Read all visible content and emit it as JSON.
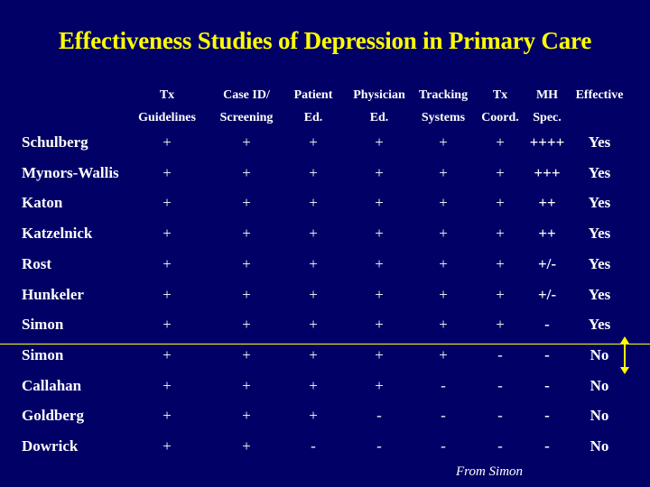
{
  "title": "Effectiveness Studies of Depression in Primary Care",
  "columns": [
    {
      "line1": "Tx",
      "line2": "Guidelines"
    },
    {
      "line1": "Case ID/",
      "line2": "Screening"
    },
    {
      "line1": "Patient",
      "line2": "Ed."
    },
    {
      "line1": "Physician",
      "line2": "Ed."
    },
    {
      "line1": "Tracking",
      "line2": "Systems"
    },
    {
      "line1": "Tx",
      "line2": "Coord."
    },
    {
      "line1": "MH",
      "line2": "Spec."
    },
    {
      "line1": "Effective",
      "line2": ""
    }
  ],
  "rows": [
    {
      "name": "Schulberg",
      "values": [
        "+",
        "+",
        "+",
        "+",
        "+",
        "+",
        "++++",
        "Yes"
      ]
    },
    {
      "name": "Mynors-Wallis",
      "values": [
        "+",
        "+",
        "+",
        "+",
        "+",
        "+",
        "+++",
        "Yes"
      ]
    },
    {
      "name": "Katon",
      "values": [
        "+",
        "+",
        "+",
        "+",
        "+",
        "+",
        "++",
        "Yes"
      ]
    },
    {
      "name": "Katzelnick",
      "values": [
        "+",
        "+",
        "+",
        "+",
        "+",
        "+",
        "++",
        "Yes"
      ]
    },
    {
      "name": "Rost",
      "values": [
        "+",
        "+",
        "+",
        "+",
        "+",
        "+",
        "+/-",
        "Yes"
      ]
    },
    {
      "name": "Hunkeler",
      "values": [
        "+",
        "+",
        "+",
        "+",
        "+",
        "+",
        "+/-",
        "Yes"
      ]
    },
    {
      "name": "Simon",
      "values": [
        "+",
        "+",
        "+",
        "+",
        "+",
        "+",
        "-",
        "Yes"
      ]
    },
    {
      "name": "Simon",
      "values": [
        "+",
        "+",
        "+",
        "+",
        "+",
        "-",
        "-",
        "No"
      ]
    },
    {
      "name": "Callahan",
      "values": [
        "+",
        "+",
        "+",
        "+",
        "-",
        "-",
        "-",
        "No"
      ]
    },
    {
      "name": "Goldberg",
      "values": [
        "+",
        "+",
        "+",
        "-",
        "-",
        "-",
        "-",
        "No"
      ]
    },
    {
      "name": "Dowrick",
      "values": [
        "+",
        "+",
        "-",
        "-",
        "-",
        "-",
        "-",
        "No"
      ]
    }
  ],
  "source": "From Simon",
  "colors": {
    "background": "#000066",
    "title": "#ffff00",
    "text": "#ffffff",
    "divider": "#ffff00"
  }
}
